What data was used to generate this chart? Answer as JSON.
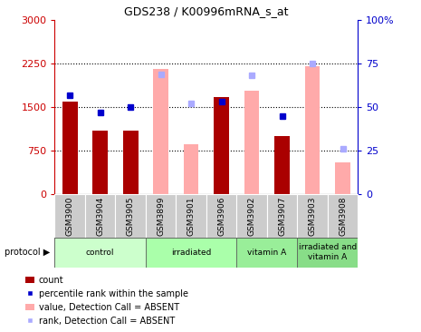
{
  "title": "GDS238 / K00996mRNA_s_at",
  "samples": [
    "GSM3900",
    "GSM3904",
    "GSM3905",
    "GSM3899",
    "GSM3901",
    "GSM3906",
    "GSM3902",
    "GSM3907",
    "GSM3903",
    "GSM3908"
  ],
  "count_values": [
    1600,
    1100,
    1100,
    null,
    850,
    1680,
    null,
    1000,
    null,
    null
  ],
  "rank_values": [
    57,
    47,
    50,
    null,
    null,
    53,
    null,
    45,
    null,
    null
  ],
  "absent_value": [
    null,
    null,
    null,
    2150,
    860,
    null,
    1780,
    null,
    2200,
    550
  ],
  "absent_rank": [
    null,
    null,
    null,
    69,
    52,
    null,
    68,
    null,
    75,
    26
  ],
  "protocols": [
    {
      "label": "control",
      "start": 0,
      "end": 3,
      "color": "#ccffcc"
    },
    {
      "label": "irradiated",
      "start": 3,
      "end": 6,
      "color": "#aaffaa"
    },
    {
      "label": "vitamin A",
      "start": 6,
      "end": 8,
      "color": "#99ee99"
    },
    {
      "label": "irradiated and\nvitamin A",
      "start": 8,
      "end": 10,
      "color": "#88dd88"
    }
  ],
  "left_ylim": [
    0,
    3000
  ],
  "right_ylim": [
    0,
    100
  ],
  "left_yticks": [
    0,
    750,
    1500,
    2250,
    3000
  ],
  "right_yticks": [
    0,
    25,
    50,
    75,
    100
  ],
  "right_yticklabels": [
    "0",
    "25",
    "50",
    "75",
    "100%"
  ],
  "bar_color_dark_red": "#aa0000",
  "bar_color_pink": "#ffaaaa",
  "dot_color_dark_blue": "#0000cc",
  "dot_color_light_blue": "#aaaaff",
  "bg_color": "white",
  "left_label_color": "#cc0000",
  "right_label_color": "#0000cc",
  "sample_box_color": "#cccccc",
  "proto_border_color": "#555555",
  "bar_width": 0.5,
  "figsize": [
    4.65,
    3.66
  ],
  "dpi": 100
}
